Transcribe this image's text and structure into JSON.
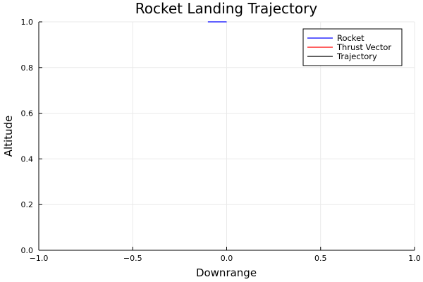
{
  "chart_data": {
    "type": "line",
    "title": "Rocket Landing Trajectory",
    "xlabel": "Downrange",
    "ylabel": "Altitude",
    "xlim": [
      -1.0,
      1.0
    ],
    "ylim": [
      0.0,
      1.0
    ],
    "xticks": [
      -1.0,
      -0.5,
      0.0,
      0.5,
      1.0
    ],
    "xtick_labels": [
      "−1.0",
      "−0.5",
      "0.0",
      "0.5",
      "1.0"
    ],
    "yticks": [
      0.0,
      0.2,
      0.4,
      0.6,
      0.8,
      1.0
    ],
    "ytick_labels": [
      "0.0",
      "0.2",
      "0.4",
      "0.6",
      "0.8",
      "1.0"
    ],
    "grid": true,
    "legend_position": "top-right",
    "series": [
      {
        "name": "Rocket",
        "color": "#0000ff",
        "x": [
          -0.1,
          0.0
        ],
        "y": [
          1.0,
          1.0
        ]
      },
      {
        "name": "Thrust Vector",
        "color": "#ff0000",
        "x": [],
        "y": []
      },
      {
        "name": "Trajectory",
        "color": "#000000",
        "x": [],
        "y": []
      }
    ]
  }
}
